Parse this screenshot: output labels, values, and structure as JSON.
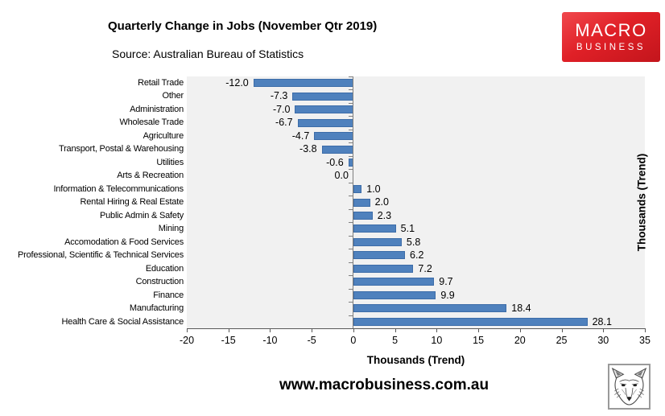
{
  "header": {
    "title": "Quarterly Change in Jobs (November Qtr 2019)",
    "source": "Source: Australian Bureau of Statistics",
    "logo": {
      "line1": "MACRO",
      "line2": "BUSINESS",
      "bg_color": "#e02027",
      "text_color": "#ffffff"
    }
  },
  "chart_data": {
    "type": "bar",
    "orientation": "horizontal",
    "title": "Quarterly Change in Jobs (November Qtr 2019)",
    "xlabel": "Thousands (Trend)",
    "right_ylabel": "Thousands (Trend)",
    "xlim": [
      -20,
      35
    ],
    "x_ticks": [
      -20,
      -15,
      -10,
      -5,
      0,
      5,
      10,
      15,
      20,
      25,
      30,
      35
    ],
    "grid": false,
    "legend": false,
    "plot_bg": "#f1f1f1",
    "bar_fill": "#4f81bd",
    "bar_border": "#3c6ca8",
    "axis_color": "#595959",
    "zero_line_color": "#7f7f7f",
    "categories": [
      "Retail Trade",
      "Other",
      "Administration",
      "Wholesale Trade",
      "Agriculture",
      "Transport, Postal & Warehousing",
      "Utilities",
      "Arts & Recreation",
      "Information & Telecommunications",
      "Rental Hiring & Real Estate",
      "Public Admin & Safety",
      "Mining",
      "Accomodation & Food Services",
      "Professional, Scientific & Technical Services",
      "Education",
      "Construction",
      "Finance",
      "Manufacturing",
      "Health Care & Social Assistance"
    ],
    "values": [
      -12.0,
      -7.3,
      -7.0,
      -6.7,
      -4.7,
      -3.8,
      -0.6,
      0.0,
      1.0,
      2.0,
      2.3,
      5.1,
      5.8,
      6.2,
      7.2,
      9.7,
      9.9,
      18.4,
      28.1
    ],
    "value_labels": [
      "-12.0",
      "-7.3",
      "-7.0",
      "-6.7",
      "-4.7",
      "-3.8",
      "-0.6",
      "0.0",
      "1.0",
      "2.0",
      "2.3",
      "5.1",
      "5.8",
      "6.2",
      "7.2",
      "9.7",
      "9.9",
      "18.4",
      "28.1"
    ]
  },
  "footer": {
    "website": "www.macrobusiness.com.au",
    "wolf_logo": "wolf-sketch"
  }
}
